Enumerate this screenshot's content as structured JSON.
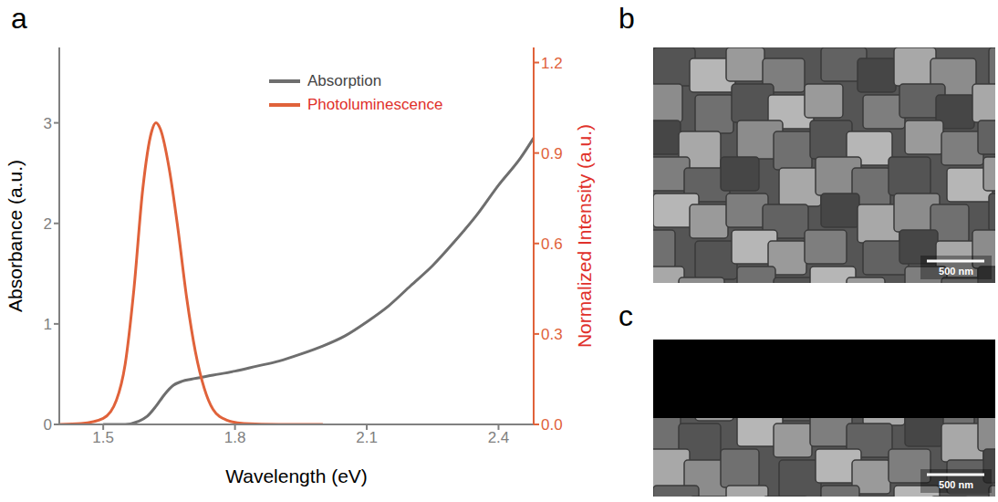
{
  "chart_data": {
    "type": "line",
    "panel": "a",
    "x_label": "Wavelength (eV)",
    "y_label": "Absorbance (a.u.)",
    "y2_label": "Normalized Intensity (a.u.)",
    "xlim": [
      1.4,
      2.48
    ],
    "xticks": [
      1.5,
      1.8,
      2.1,
      2.4
    ],
    "ylim": [
      0,
      3.75
    ],
    "yticks": [
      0,
      1,
      2,
      3
    ],
    "y2lim": [
      0,
      1.25
    ],
    "y2ticks": [
      {
        "value": 0,
        "label": "0.0"
      },
      0.3,
      0.6,
      0.9,
      1.2
    ],
    "legend": "upper right",
    "grid": false,
    "series": [
      {
        "name": "Absorption",
        "color": "#6e6e6e",
        "axis": "y",
        "x": [
          1.5,
          1.55,
          1.58,
          1.6,
          1.62,
          1.64,
          1.66,
          1.68,
          1.7,
          1.75,
          1.8,
          1.85,
          1.9,
          1.95,
          2.0,
          2.05,
          2.1,
          2.15,
          2.2,
          2.25,
          2.3,
          2.35,
          2.4,
          2.45,
          2.48
        ],
        "values": [
          0,
          0,
          0.03,
          0.08,
          0.18,
          0.3,
          0.39,
          0.43,
          0.45,
          0.49,
          0.53,
          0.58,
          0.63,
          0.7,
          0.78,
          0.88,
          1.02,
          1.18,
          1.38,
          1.58,
          1.82,
          2.08,
          2.38,
          2.65,
          2.85
        ]
      },
      {
        "name": "Photoluminescence",
        "color": "#e0623a",
        "axis": "y2",
        "x": [
          1.4,
          1.45,
          1.5,
          1.53,
          1.55,
          1.57,
          1.59,
          1.61,
          1.62,
          1.63,
          1.65,
          1.67,
          1.69,
          1.71,
          1.73,
          1.75,
          1.78,
          1.82,
          1.9,
          2.0
        ],
        "values": [
          0,
          0.003,
          0.02,
          0.08,
          0.2,
          0.45,
          0.78,
          0.97,
          1.0,
          0.98,
          0.85,
          0.65,
          0.42,
          0.24,
          0.12,
          0.05,
          0.015,
          0.003,
          0,
          0
        ]
      }
    ]
  },
  "images": [
    {
      "panel": "b",
      "scale_bar": "500 nm"
    },
    {
      "panel": "c",
      "scale_bar": "500 nm"
    }
  ]
}
